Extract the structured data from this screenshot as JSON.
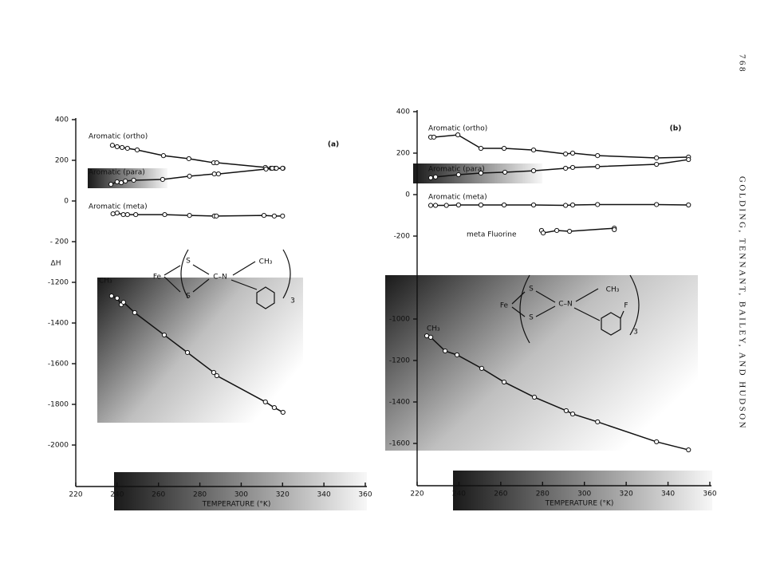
{
  "page_number": "768",
  "running_head": "GOLDING, TENNANT, BAILEY, AND HUDSON",
  "chart_data": [
    {
      "type": "line",
      "panel": "(a)",
      "xlabel": "TEMPERATURE (°K)",
      "ylabel": "ΔH",
      "color": "#111111",
      "xlim": [
        220,
        360
      ],
      "xticks": [
        220,
        240,
        260,
        280,
        300,
        320,
        340,
        360
      ],
      "ylim": [
        -2200,
        400
      ],
      "ybreak": [
        -1200,
        -200
      ],
      "yticks": [
        400,
        200,
        0,
        {
          "value": -200,
          "label": "- 200"
        },
        -1200,
        -1400,
        -1600,
        -1800,
        -2000
      ],
      "series": [
        {
          "name": "Aromatic (ortho)",
          "x": [
            237.7,
            240,
            242.4,
            245,
            249.7,
            262.4,
            274.7,
            286.7,
            288.2,
            311.7,
            314.4,
            316.4,
            320.2
          ],
          "values": [
            274,
            267,
            263,
            259,
            251,
            223,
            208,
            188,
            188,
            165,
            161,
            161,
            161
          ]
        },
        {
          "name": "Aromatic (para)",
          "x": [
            237,
            240,
            242,
            244,
            248,
            262,
            275,
            287,
            289,
            312,
            315,
            317,
            320
          ],
          "values": [
            82,
            94,
            90,
            98,
            102,
            106,
            122,
            133,
            133,
            157,
            161,
            161,
            161
          ]
        },
        {
          "name": "Aromatic (meta)",
          "x": [
            238,
            240,
            243,
            245,
            249,
            263,
            275,
            287,
            288,
            311,
            316,
            320
          ],
          "values": [
            -63,
            -59,
            -67,
            -67,
            -67,
            -67,
            -71,
            -74,
            -74,
            -71,
            -74,
            -74
          ]
        },
        {
          "name": "CH₃",
          "x": [
            237.3,
            240,
            242,
            243.1,
            248.5,
            262.8,
            274,
            286.7,
            288.2,
            311.7,
            316,
            320.2
          ],
          "values": [
            -1267,
            -1278,
            -1310,
            -1298,
            -1349,
            -1459,
            -1545,
            -1643,
            -1659,
            -1788,
            -1816,
            -1839
          ]
        }
      ],
      "structure": [
        "Fe",
        "S",
        "S",
        "C–N",
        "CH₃",
        "3"
      ]
    },
    {
      "type": "line",
      "panel": "(b)",
      "xlabel": "TEMPERATURE (°K)",
      "color": "#111111",
      "xlim": [
        220,
        360
      ],
      "xticks": [
        220,
        240,
        260,
        280,
        300,
        320,
        340,
        360
      ],
      "ylim": [
        -1800,
        400
      ],
      "ybreak": [
        -800,
        -200
      ],
      "yticks": [
        400,
        200,
        0,
        -200,
        -1000,
        -1200,
        -1400,
        -1600
      ],
      "series": [
        {
          "name": "Aromatic (ortho)",
          "x": [
            226.5,
            228,
            239.5,
            250.5,
            261.6,
            275.7,
            291,
            294.4,
            306.3,
            334.5,
            349.8
          ],
          "values": [
            277,
            277,
            288,
            223,
            223,
            215,
            196,
            200,
            188,
            177,
            181
          ]
        },
        {
          "name": "Aromatic (para)",
          "x": [
            226.5,
            228.8,
            239.8,
            250.5,
            262,
            275.7,
            291,
            294.4,
            306.3,
            334.5,
            349.8
          ],
          "values": [
            81,
            85,
            96,
            104,
            108,
            115,
            127,
            131,
            135,
            146,
            169
          ]
        },
        {
          "name": "Aromatic (meta)",
          "x": [
            226.5,
            228.8,
            234,
            239.8,
            250.5,
            261.6,
            275.7,
            291,
            294.4,
            306.3,
            334.5,
            349.8
          ],
          "values": [
            -52,
            -52,
            -52,
            -50,
            -50,
            -50,
            -50,
            -52,
            -50,
            -48,
            -48,
            -50
          ]
        },
        {
          "name": "meta Fluorine",
          "x": [
            279.5,
            280.3,
            286.8,
            292.9,
            314.3,
            314.3
          ],
          "values": [
            -173,
            -185,
            -173,
            -177,
            -162,
            -169
          ]
        },
        {
          "name": "CH₃",
          "x": [
            224.6,
            226.5,
            233.4,
            239.1,
            250.9,
            261.6,
            276.1,
            291.3,
            294.4,
            306.3,
            334.5,
            349.8
          ],
          "values": [
            -1081,
            -1088,
            -1154,
            -1173,
            -1238,
            -1304,
            -1377,
            -1442,
            -1458,
            -1496,
            -1592,
            -1631
          ]
        }
      ],
      "structure": [
        "Fe",
        "S",
        "S",
        "C–N",
        "CH₃",
        "3",
        "F"
      ]
    }
  ]
}
